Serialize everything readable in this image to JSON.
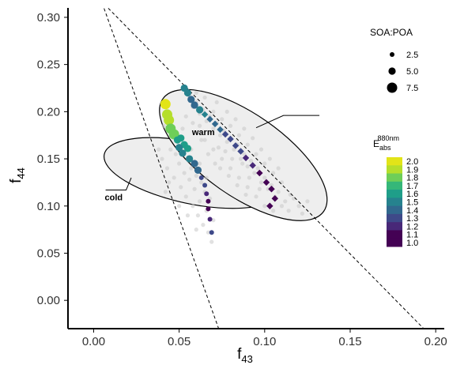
{
  "chart_data": {
    "type": "scatter",
    "xlabel": "f",
    "xlabel_sub": "43",
    "ylabel": "f",
    "ylabel_sub": "44",
    "xlim": [
      -0.015,
      0.205
    ],
    "ylim": [
      -0.03,
      0.31
    ],
    "xticks": [
      0.0,
      0.05,
      0.1,
      0.15,
      0.2
    ],
    "xtick_labels": [
      "0.00",
      "0.05",
      "0.10",
      "0.15",
      "0.20"
    ],
    "yticks": [
      0.0,
      0.05,
      0.1,
      0.15,
      0.2,
      0.25,
      0.3
    ],
    "ytick_labels": [
      "0.00",
      "0.05",
      "0.10",
      "0.15",
      "0.20",
      "0.25",
      "0.30"
    ],
    "grid": false,
    "triangle_lines": [
      {
        "x": [
          0.005,
          0.0735
        ],
        "y": [
          0.315,
          -0.032
        ]
      },
      {
        "x": [
          0.004,
          0.193
        ],
        "y": [
          0.318,
          -0.03
        ]
      }
    ],
    "regions": [
      {
        "label": "cold",
        "cx": 0.0575,
        "cy": 0.135,
        "rx": 0.018,
        "ry": 0.095,
        "angle_deg": -78,
        "label_x": 0.0065,
        "label_y": 0.106,
        "leader": [
          [
            0.007,
            0.117
          ],
          [
            0.019,
            0.117
          ],
          [
            0.022,
            0.13
          ]
        ]
      },
      {
        "label": "warm",
        "cx": 0.0875,
        "cy": 0.154,
        "rx": 0.024,
        "ry": 0.104,
        "angle_deg": -55,
        "label_x": 0.0575,
        "label_y": 0.175,
        "leader": [
          [
            0.095,
            0.183
          ],
          [
            0.111,
            0.196
          ],
          [
            0.132,
            0.196
          ]
        ]
      }
    ],
    "background_points": [
      [
        0.04,
        0.15
      ],
      [
        0.043,
        0.14
      ],
      [
        0.045,
        0.16
      ],
      [
        0.047,
        0.13
      ],
      [
        0.048,
        0.155
      ],
      [
        0.05,
        0.145
      ],
      [
        0.051,
        0.12
      ],
      [
        0.052,
        0.165
      ],
      [
        0.053,
        0.135
      ],
      [
        0.054,
        0.11
      ],
      [
        0.055,
        0.15
      ],
      [
        0.056,
        0.128
      ],
      [
        0.057,
        0.14
      ],
      [
        0.058,
        0.1
      ],
      [
        0.059,
        0.118
      ],
      [
        0.06,
        0.132
      ],
      [
        0.061,
        0.09
      ],
      [
        0.062,
        0.105
      ],
      [
        0.063,
        0.125
      ],
      [
        0.064,
        0.08
      ],
      [
        0.065,
        0.115
      ],
      [
        0.066,
        0.095
      ],
      [
        0.067,
        0.072
      ],
      [
        0.068,
        0.108
      ],
      [
        0.069,
        0.062
      ],
      [
        0.07,
        0.085
      ],
      [
        0.046,
        0.175
      ],
      [
        0.049,
        0.17
      ],
      [
        0.044,
        0.125
      ],
      [
        0.042,
        0.115
      ],
      [
        0.05,
        0.1
      ],
      [
        0.055,
        0.09
      ],
      [
        0.06,
        0.075
      ],
      [
        0.038,
        0.16
      ],
      [
        0.041,
        0.185
      ],
      [
        0.045,
        0.195
      ],
      [
        0.052,
        0.182
      ],
      [
        0.057,
        0.16
      ],
      [
        0.062,
        0.145
      ],
      [
        0.066,
        0.13
      ],
      [
        0.056,
        0.215
      ],
      [
        0.058,
        0.205
      ],
      [
        0.06,
        0.21
      ],
      [
        0.062,
        0.198
      ],
      [
        0.064,
        0.202
      ],
      [
        0.066,
        0.19
      ],
      [
        0.068,
        0.195
      ],
      [
        0.07,
        0.182
      ],
      [
        0.072,
        0.188
      ],
      [
        0.074,
        0.175
      ],
      [
        0.076,
        0.18
      ],
      [
        0.078,
        0.168
      ],
      [
        0.08,
        0.172
      ],
      [
        0.082,
        0.16
      ],
      [
        0.084,
        0.165
      ],
      [
        0.086,
        0.15
      ],
      [
        0.088,
        0.155
      ],
      [
        0.09,
        0.142
      ],
      [
        0.092,
        0.148
      ],
      [
        0.094,
        0.135
      ],
      [
        0.096,
        0.14
      ],
      [
        0.098,
        0.125
      ],
      [
        0.1,
        0.13
      ],
      [
        0.102,
        0.118
      ],
      [
        0.104,
        0.122
      ],
      [
        0.106,
        0.11
      ],
      [
        0.108,
        0.115
      ],
      [
        0.11,
        0.1
      ],
      [
        0.112,
        0.105
      ],
      [
        0.114,
        0.095
      ],
      [
        0.07,
        0.2
      ],
      [
        0.075,
        0.192
      ],
      [
        0.08,
        0.185
      ],
      [
        0.085,
        0.175
      ],
      [
        0.09,
        0.165
      ],
      [
        0.095,
        0.155
      ],
      [
        0.1,
        0.145
      ],
      [
        0.105,
        0.135
      ],
      [
        0.11,
        0.125
      ],
      [
        0.115,
        0.112
      ],
      [
        0.065,
        0.17
      ],
      [
        0.07,
        0.16
      ],
      [
        0.075,
        0.15
      ],
      [
        0.08,
        0.14
      ],
      [
        0.085,
        0.13
      ],
      [
        0.09,
        0.12
      ],
      [
        0.095,
        0.11
      ],
      [
        0.1,
        0.1
      ],
      [
        0.105,
        0.095
      ],
      [
        0.12,
        0.1
      ],
      [
        0.06,
        0.22
      ],
      [
        0.065,
        0.215
      ],
      [
        0.072,
        0.21
      ],
      [
        0.078,
        0.2
      ],
      [
        0.083,
        0.192
      ],
      [
        0.088,
        0.182
      ],
      [
        0.093,
        0.172
      ],
      [
        0.098,
        0.16
      ],
      [
        0.103,
        0.15
      ],
      [
        0.108,
        0.14
      ],
      [
        0.073,
        0.162
      ],
      [
        0.077,
        0.158
      ],
      [
        0.081,
        0.15
      ],
      [
        0.087,
        0.145
      ],
      [
        0.091,
        0.13
      ],
      [
        0.097,
        0.118
      ],
      [
        0.062,
        0.185
      ],
      [
        0.068,
        0.178
      ],
      [
        0.074,
        0.14
      ],
      [
        0.079,
        0.132
      ],
      [
        0.084,
        0.122
      ],
      [
        0.089,
        0.112
      ],
      [
        0.054,
        0.195
      ],
      [
        0.058,
        0.188
      ],
      [
        0.063,
        0.17
      ],
      [
        0.067,
        0.155
      ],
      [
        0.071,
        0.145
      ],
      [
        0.117,
        0.108
      ],
      [
        0.122,
        0.092
      ],
      [
        0.125,
        0.105
      ]
    ],
    "series": [
      {
        "regime": "cold",
        "points": [
          {
            "x": 0.042,
            "y": 0.208,
            "e": 1.95,
            "r": 7.5
          },
          {
            "x": 0.043,
            "y": 0.197,
            "e": 1.9,
            "r": 7.5
          },
          {
            "x": 0.044,
            "y": 0.191,
            "e": 1.85,
            "r": 7.5
          },
          {
            "x": 0.045,
            "y": 0.182,
            "e": 1.8,
            "r": 7.5
          },
          {
            "x": 0.047,
            "y": 0.176,
            "e": 1.75,
            "r": 7.5
          },
          {
            "x": 0.049,
            "y": 0.17,
            "e": 1.65,
            "r": 5.0
          },
          {
            "x": 0.051,
            "y": 0.172,
            "e": 1.6,
            "r": 5.0
          },
          {
            "x": 0.053,
            "y": 0.165,
            "e": 1.55,
            "r": 5.0
          },
          {
            "x": 0.055,
            "y": 0.161,
            "e": 1.55,
            "r": 5.0
          },
          {
            "x": 0.05,
            "y": 0.162,
            "e": 1.5,
            "r": 5.0
          },
          {
            "x": 0.052,
            "y": 0.156,
            "e": 1.45,
            "r": 5.0
          },
          {
            "x": 0.056,
            "y": 0.15,
            "e": 1.45,
            "r": 5.0
          },
          {
            "x": 0.059,
            "y": 0.145,
            "e": 1.4,
            "r": 5.0
          },
          {
            "x": 0.061,
            "y": 0.138,
            "e": 1.35,
            "r": 5.0
          },
          {
            "x": 0.063,
            "y": 0.13,
            "e": 1.3,
            "r": 2.5
          },
          {
            "x": 0.065,
            "y": 0.122,
            "e": 1.25,
            "r": 2.5
          },
          {
            "x": 0.066,
            "y": 0.113,
            "e": 1.2,
            "r": 2.5
          },
          {
            "x": 0.067,
            "y": 0.105,
            "e": 1.15,
            "r": 2.5
          },
          {
            "x": 0.067,
            "y": 0.097,
            "e": 1.05,
            "r": 2.5
          },
          {
            "x": 0.068,
            "y": 0.086,
            "e": 1.2,
            "r": 2.5
          },
          {
            "x": 0.069,
            "y": 0.072,
            "e": 1.25,
            "r": 2.5
          }
        ]
      },
      {
        "regime": "warm",
        "points": [
          {
            "x": 0.053,
            "y": 0.225,
            "e": 1.5,
            "r": 5.0
          },
          {
            "x": 0.055,
            "y": 0.22,
            "e": 1.45,
            "r": 5.0
          },
          {
            "x": 0.057,
            "y": 0.213,
            "e": 1.4,
            "r": 5.0
          },
          {
            "x": 0.059,
            "y": 0.207,
            "e": 1.35,
            "r": 5.0
          },
          {
            "x": 0.062,
            "y": 0.202,
            "e": 1.5,
            "r": 5.0
          },
          {
            "x": 0.065,
            "y": 0.197,
            "e": 1.45,
            "r": 2.5
          },
          {
            "x": 0.068,
            "y": 0.192,
            "e": 1.4,
            "r": 2.5
          },
          {
            "x": 0.071,
            "y": 0.187,
            "e": 1.35,
            "r": 2.5
          },
          {
            "x": 0.074,
            "y": 0.181,
            "e": 1.35,
            "r": 2.5
          },
          {
            "x": 0.077,
            "y": 0.176,
            "e": 1.3,
            "r": 2.5
          },
          {
            "x": 0.08,
            "y": 0.171,
            "e": 1.3,
            "r": 2.5
          },
          {
            "x": 0.083,
            "y": 0.164,
            "e": 1.25,
            "r": 2.5
          },
          {
            "x": 0.086,
            "y": 0.158,
            "e": 1.25,
            "r": 2.5
          },
          {
            "x": 0.089,
            "y": 0.151,
            "e": 1.2,
            "r": 2.5
          },
          {
            "x": 0.093,
            "y": 0.143,
            "e": 1.2,
            "r": 2.5
          },
          {
            "x": 0.097,
            "y": 0.135,
            "e": 1.15,
            "r": 2.5
          },
          {
            "x": 0.101,
            "y": 0.125,
            "e": 1.1,
            "r": 2.5
          },
          {
            "x": 0.104,
            "y": 0.118,
            "e": 1.1,
            "r": 2.5
          },
          {
            "x": 0.106,
            "y": 0.108,
            "e": 1.05,
            "r": 2.5
          },
          {
            "x": 0.103,
            "y": 0.1,
            "e": 1.0,
            "r": 2.5
          }
        ]
      }
    ],
    "legend_size": {
      "title": "SOA:POA",
      "placement": "top-right",
      "entries": [
        {
          "label": "2.5",
          "value": 2.5
        },
        {
          "label": "5.0",
          "value": 5.0
        },
        {
          "label": "7.5",
          "value": 7.5
        }
      ]
    },
    "legend_color": {
      "title_main": "E",
      "title_sub": "abs",
      "title_sup": "880nm",
      "placement": "right",
      "entries": [
        {
          "label": "2.0",
          "color": "#e2e418"
        },
        {
          "label": "1.9",
          "color": "#b5de2b"
        },
        {
          "label": "1.8",
          "color": "#6ece58"
        },
        {
          "label": "1.7",
          "color": "#35b779"
        },
        {
          "label": "1.6",
          "color": "#1f9e89"
        },
        {
          "label": "1.5",
          "color": "#26828e"
        },
        {
          "label": "1.4",
          "color": "#31688e"
        },
        {
          "label": "1.3",
          "color": "#3e4989"
        },
        {
          "label": "1.2",
          "color": "#482878"
        },
        {
          "label": "1.1",
          "color": "#440154"
        },
        {
          "label": "1.0",
          "color": "#440154"
        }
      ]
    },
    "colors": {
      "background_points": "#c8c8c8",
      "region_fill": "#eeeeee"
    }
  }
}
